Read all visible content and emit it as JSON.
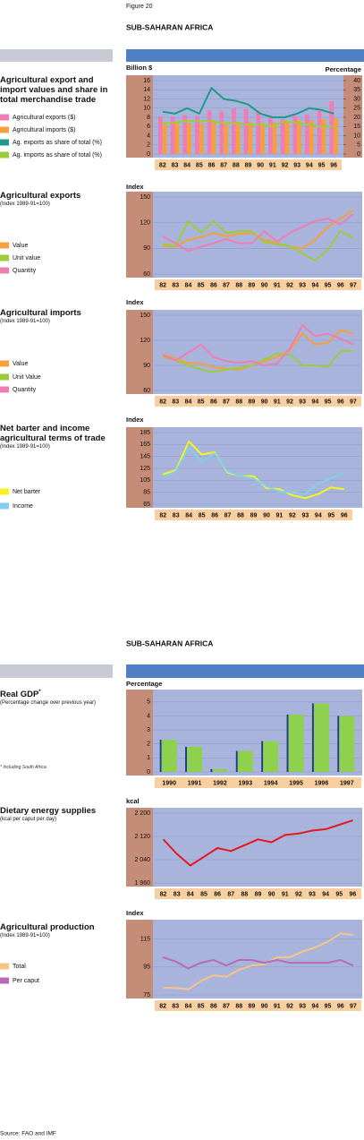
{
  "figure_label": "Figure 20",
  "section_titles": [
    "SUB-SAHARAN AFRICA",
    "SUB-SAHARAN AFRICA"
  ],
  "source": "Source: FAO and IMF",
  "chart_data": [
    {
      "type": "combo",
      "title": "Agricultural export and import values and share in total merchandise trade",
      "y_label": "Billion $",
      "y2_label": "Percentage",
      "categories": [
        "82",
        "83",
        "84",
        "85",
        "86",
        "87",
        "88",
        "89",
        "90",
        "91",
        "92",
        "93",
        "94",
        "95",
        "96"
      ],
      "ylim": [
        0,
        16
      ],
      "yticks": [
        0,
        2,
        4,
        6,
        8,
        10,
        12,
        14,
        16
      ],
      "y2lim": [
        0,
        40
      ],
      "y2ticks": [
        0,
        5,
        10,
        15,
        20,
        25,
        30,
        35,
        40
      ],
      "grid": true,
      "series": [
        {
          "name": "Agricultural exports ($)",
          "type": "bar",
          "color": "#f07cb4",
          "values": [
            8.2,
            8.1,
            8.5,
            8.3,
            9.5,
            9.3,
            10,
            9.8,
            9.4,
            8,
            7.6,
            8.3,
            8.6,
            9.4,
            11.5
          ]
        },
        {
          "name": "Agricultural imports ($)",
          "type": "bar",
          "color": "#f5a03c",
          "values": [
            6.5,
            6.8,
            6.8,
            6.6,
            7,
            6.9,
            7,
            7,
            6.8,
            6.9,
            7,
            7.5,
            7.3,
            7.6,
            7.8
          ]
        },
        {
          "name": "Ag. exports as share of total (%)",
          "type": "line",
          "axis": "y2",
          "color": "#1f9a8a",
          "values": [
            23,
            22,
            25,
            22,
            36,
            30,
            29,
            27,
            22,
            20,
            20,
            22,
            25,
            24,
            22
          ]
        },
        {
          "name": "Ag. imports as share of total (%)",
          "type": "line",
          "axis": "y2",
          "color": "#9ccc3c",
          "values": [
            17,
            17,
            18,
            18,
            18,
            17,
            17,
            16,
            16,
            15,
            18,
            17,
            16,
            15,
            15
          ]
        }
      ]
    },
    {
      "type": "line",
      "title": "Agricultural exports",
      "subtitle": "(Index 1989-91=100)",
      "y_label": "Index",
      "categories": [
        "82",
        "83",
        "84",
        "85",
        "86",
        "87",
        "88",
        "89",
        "90",
        "91",
        "92",
        "93",
        "94",
        "95",
        "96",
        "97"
      ],
      "ylim": [
        60,
        150
      ],
      "yticks": [
        60,
        90,
        120,
        150
      ],
      "grid": true,
      "series": [
        {
          "name": "Value",
          "color": "#f5a03c",
          "values": [
            92,
            92,
            100,
            103,
            108,
            104,
            107,
            108,
            100,
            96,
            92,
            90,
            100,
            115,
            125,
            135
          ]
        },
        {
          "name": "Unit value",
          "color": "#9ccc3c",
          "values": [
            95,
            93,
            122,
            108,
            122,
            108,
            110,
            110,
            97,
            95,
            92,
            84,
            76,
            88,
            110,
            102
          ]
        },
        {
          "name": "Quantity",
          "color": "#f07cb4",
          "values": [
            104,
            96,
            87,
            92,
            96,
            101,
            96,
            96,
            110,
            98,
            108,
            115,
            122,
            125,
            118,
            130
          ]
        }
      ]
    },
    {
      "type": "line",
      "title": "Agricultural imports",
      "subtitle": "(Index 1989-91=100)",
      "y_label": "Index",
      "categories": [
        "82",
        "83",
        "84",
        "85",
        "86",
        "87",
        "88",
        "89",
        "90",
        "91",
        "92",
        "93",
        "94",
        "95",
        "96",
        "97"
      ],
      "ylim": [
        60,
        150
      ],
      "yticks": [
        60,
        90,
        120,
        150
      ],
      "grid": true,
      "series": [
        {
          "name": "Value",
          "color": "#f5a03c",
          "values": [
            103,
            98,
            93,
            92,
            88,
            86,
            85,
            90,
            95,
            100,
            108,
            128,
            115,
            117,
            132,
            128
          ]
        },
        {
          "name": "Unit Value",
          "color": "#9ccc3c",
          "values": [
            100,
            96,
            90,
            85,
            82,
            85,
            87,
            90,
            97,
            104,
            103,
            90,
            90,
            88,
            107,
            108
          ]
        },
        {
          "name": "Quantity",
          "color": "#f07cb4",
          "values": [
            102,
            96,
            105,
            115,
            100,
            95,
            93,
            95,
            90,
            92,
            110,
            138,
            125,
            128,
            122,
            115
          ]
        }
      ]
    },
    {
      "type": "line",
      "title": "Net barter and income agricultural terms of trade",
      "subtitle": "(Index 1989-91=100)",
      "y_label": "Index",
      "categories": [
        "82",
        "83",
        "84",
        "85",
        "86",
        "87",
        "88",
        "89",
        "90",
        "91",
        "92",
        "93",
        "94",
        "95",
        "96"
      ],
      "ylim": [
        65,
        185
      ],
      "yticks": [
        65,
        85,
        105,
        125,
        145,
        165,
        185
      ],
      "grid": true,
      "series": [
        {
          "name": "Net barter",
          "color": "#f5f51e",
          "values": [
            115,
            122,
            170,
            148,
            152,
            118,
            112,
            112,
            92,
            90,
            80,
            75,
            82,
            93,
            90
          ]
        },
        {
          "name": "Income",
          "color": "#7fd0e8",
          "values": [
            110,
            120,
            160,
            135,
            150,
            120,
            112,
            108,
            95,
            86,
            85,
            82,
            100,
            108,
            118
          ]
        }
      ]
    },
    {
      "type": "bar",
      "title": "Real GDP",
      "title_mark": "*",
      "subtitle": "(Percentage change over previous year)",
      "footnote": "* Including South Africa",
      "y_label": "Percentage",
      "categories": [
        "1990",
        "1991",
        "1992",
        "1993",
        "1994",
        "1995",
        "1996",
        "1997"
      ],
      "ylim": [
        0,
        5.5
      ],
      "yticks": [
        0,
        1,
        2,
        3,
        4,
        5
      ],
      "grid": true,
      "color": "#8fd14f",
      "values": [
        2.3,
        1.8,
        0.2,
        1.5,
        2.2,
        4.1,
        4.9,
        4.0
      ]
    },
    {
      "type": "line",
      "title": "Dietary energy supplies",
      "subtitle": "(kcal per caput per day)",
      "y_label": "kcal",
      "categories": [
        "82",
        "83",
        "84",
        "85",
        "86",
        "87",
        "88",
        "89",
        "90",
        "91",
        "92",
        "93",
        "94",
        "95",
        "96"
      ],
      "ylim": [
        1960,
        2200
      ],
      "yticks": [
        {
          "value": 1960,
          "label": "1 960"
        },
        {
          "value": 2040,
          "label": "2 040"
        },
        {
          "value": 2120,
          "label": "2 120"
        },
        {
          "value": 2200,
          "label": "2 200"
        }
      ],
      "grid": true,
      "series": [
        {
          "color": "#e8161e",
          "values": [
            2110,
            2060,
            2020,
            2050,
            2080,
            2070,
            2090,
            2110,
            2100,
            2125,
            2130,
            2140,
            2145,
            2160,
            2175
          ]
        }
      ]
    },
    {
      "type": "line",
      "title": "Agricultural production",
      "subtitle": "(Index 1989-91=100)",
      "y_label": "Index",
      "categories": [
        "82",
        "83",
        "84",
        "85",
        "86",
        "87",
        "88",
        "89",
        "90",
        "91",
        "92",
        "93",
        "94",
        "95",
        "96",
        "97"
      ],
      "ylim": [
        75,
        125
      ],
      "yticks": [
        75,
        95,
        115
      ],
      "grid": true,
      "series": [
        {
          "name": "Total",
          "color": "#f7c486",
          "values": [
            80,
            80,
            79,
            85,
            89,
            88,
            93,
            96,
            97,
            102,
            102,
            106,
            109,
            113,
            119,
            118
          ]
        },
        {
          "name": "Per caput",
          "color": "#b86ab8",
          "values": [
            102,
            99,
            94,
            98,
            100,
            96,
            100,
            100,
            98,
            100,
            98,
            98,
            98,
            98,
            100,
            96
          ]
        }
      ]
    }
  ]
}
